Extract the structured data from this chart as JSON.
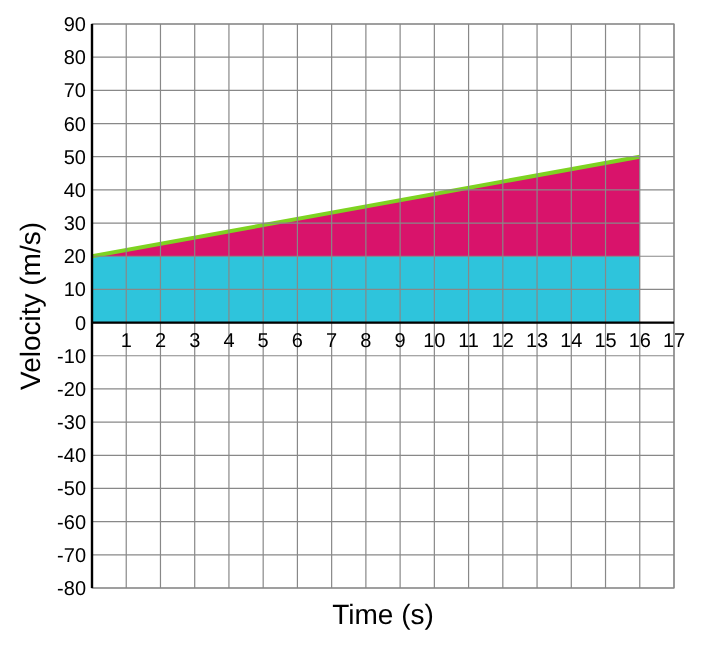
{
  "chart_data": {
    "type": "area",
    "xlabel": "Time (s)",
    "ylabel": "Velocity (m/s)",
    "grid": true,
    "x": [
      0,
      16
    ],
    "series": [
      {
        "color": "#d9136b",
        "values": [
          20,
          50
        ]
      },
      {
        "color": "#2ec4dc",
        "values": [
          20,
          20
        ]
      },
      {
        "type": "line",
        "color": "#7ed321",
        "values": [
          20,
          50
        ]
      }
    ],
    "xlim": [
      0,
      17
    ],
    "xticks": [
      1,
      2,
      3,
      4,
      5,
      6,
      7,
      8,
      9,
      10,
      11,
      12,
      13,
      14,
      15,
      16,
      17
    ],
    "ylim": [
      -80,
      90
    ],
    "yticks": [
      -80,
      -70,
      -60,
      -50,
      -40,
      -30,
      -20,
      -10,
      0,
      10,
      20,
      30,
      40,
      50,
      60,
      70,
      80,
      90
    ]
  }
}
